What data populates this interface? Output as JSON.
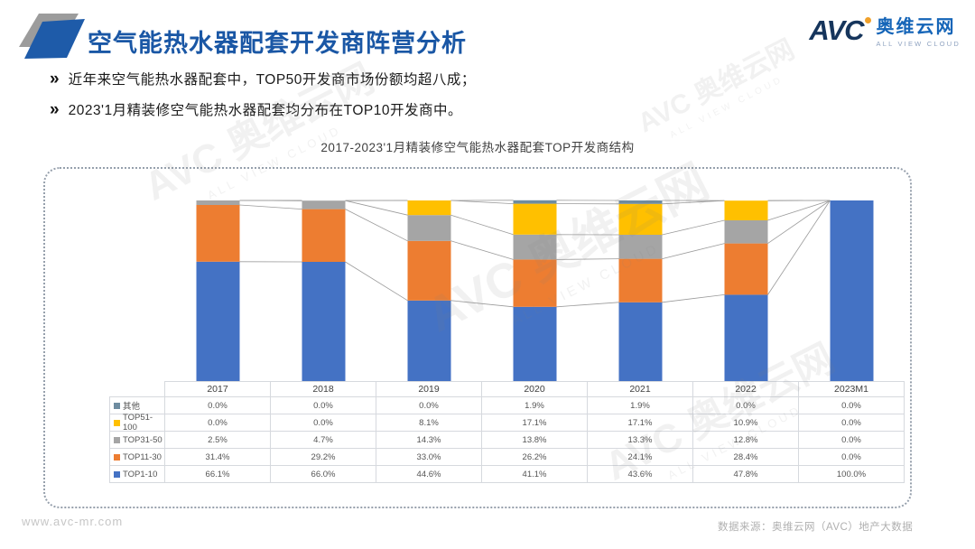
{
  "header": {
    "title": "空气能热水器配套开发商阵营分析",
    "logo": {
      "avc": "AVC",
      "brand": "奥维云网",
      "tagline": "ALL VIEW CLOUD"
    }
  },
  "bullets": {
    "marker": "»",
    "items": [
      "近年来空气能热水器配套中，TOP50开发商市场份额均超八成；",
      "2023'1月精装修空气能热水器配套均分布在TOP10开发商中。"
    ]
  },
  "chart_data": {
    "type": "bar",
    "stacked": true,
    "percent_stacked": true,
    "title": "2017-2023'1月精装修空气能热水器配套TOP开发商结构",
    "categories": [
      "2017",
      "2018",
      "2019",
      "2020",
      "2021",
      "2022",
      "2023M1"
    ],
    "series": [
      {
        "name": "TOP1-10",
        "color": "#4472C4",
        "values": [
          66.1,
          66.0,
          44.6,
          41.1,
          43.6,
          47.8,
          100.0
        ]
      },
      {
        "name": "TOP11-30",
        "color": "#ED7D31",
        "values": [
          31.4,
          29.2,
          33.0,
          26.2,
          24.1,
          28.4,
          0.0
        ]
      },
      {
        "name": "TOP31-50",
        "color": "#A5A5A5",
        "values": [
          2.5,
          4.7,
          14.3,
          13.8,
          13.3,
          12.8,
          0.0
        ]
      },
      {
        "name": "TOP51-100",
        "color": "#FFC000",
        "values": [
          0.0,
          0.0,
          8.1,
          17.1,
          17.1,
          10.9,
          0.0
        ]
      },
      {
        "name": "其他",
        "color": "#6E8CA0",
        "values": [
          0.0,
          0.0,
          0.0,
          1.9,
          1.9,
          0.0,
          0.0
        ]
      }
    ],
    "table_row_order": [
      "其他",
      "TOP51-100",
      "TOP31-50",
      "TOP11-30",
      "TOP1-10"
    ],
    "value_suffix": "%",
    "ylim": [
      0,
      100
    ],
    "grid": false,
    "series_lines": true,
    "legend_position": "data-table-left"
  },
  "footer": {
    "left": "www.avc-mr.com",
    "right": "数据来源：奥维云网（AVC）地产大数据"
  },
  "watermark": {
    "line1": "AVC 奥维云网",
    "line2": "ALL VIEW CLOUD"
  }
}
